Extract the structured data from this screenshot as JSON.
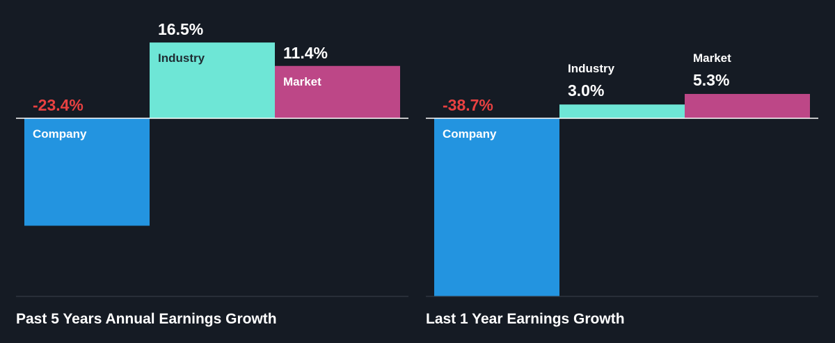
{
  "colors": {
    "background": "#151b24",
    "company": "#2394e0",
    "industry": "#6ee6d6",
    "market": "#bd4787",
    "negative_label": "#e84141",
    "label_light": "#ffffff",
    "label_dark": "#1f2d33",
    "baseline": "#ffffff",
    "divider": "#3a424c"
  },
  "chart_data": [
    {
      "type": "bar",
      "title": "Past 5 Years Annual Earnings Growth",
      "categories": [
        "Company",
        "Industry",
        "Market"
      ],
      "values": [
        -23.4,
        16.5,
        11.4
      ],
      "value_labels": [
        "-23.4%",
        "16.5%",
        "11.4%"
      ],
      "unit": "%",
      "grid": false,
      "legend": "none"
    },
    {
      "type": "bar",
      "title": "Last 1 Year Earnings Growth",
      "categories": [
        "Company",
        "Industry",
        "Market"
      ],
      "values": [
        -38.7,
        3.0,
        5.3
      ],
      "value_labels": [
        "-38.7%",
        "3.0%",
        "5.3%"
      ],
      "unit": "%",
      "grid": false,
      "legend": "none"
    }
  ]
}
